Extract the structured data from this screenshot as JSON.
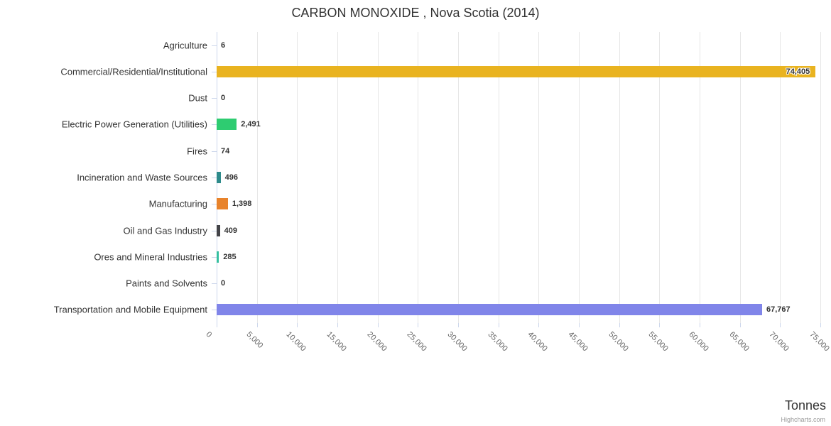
{
  "credits": "Highcharts.com",
  "chart_data": {
    "type": "bar",
    "orientation": "horizontal",
    "title": "CARBON MONOXIDE , Nova Scotia (2014)",
    "xlabel": "Tonnes",
    "categories": [
      "Agriculture",
      "Commercial/Residential/Institutional",
      "Dust",
      "Electric Power Generation (Utilities)",
      "Fires",
      "Incineration and Waste Sources",
      "Manufacturing",
      "Oil and Gas Industry",
      "Ores and Mineral Industries",
      "Paints and Solvents",
      "Transportation and Mobile Equipment"
    ],
    "values": [
      6,
      74405,
      0,
      2491,
      74,
      496,
      1398,
      409,
      285,
      0,
      67767
    ],
    "value_labels": [
      "6",
      "74,405",
      "0",
      "2,491",
      "74",
      "496",
      "1,398",
      "409",
      "285",
      "0",
      "67,767"
    ],
    "bar_colors": [
      null,
      "#E9B320",
      null,
      "#2ECC71",
      null,
      "#2E8B8B",
      "#E8832B",
      "#434348",
      "#36BFA0",
      null,
      "#8085E9"
    ],
    "axis": {
      "min": 0,
      "max": 75000,
      "tick_interval": 5000,
      "tick_labels": [
        "0",
        "5,000",
        "10,000",
        "15,000",
        "20,000",
        "25,000",
        "30,000",
        "35,000",
        "40,000",
        "45,000",
        "50,000",
        "55,000",
        "60,000",
        "65,000",
        "70,000",
        "75,000"
      ]
    },
    "grid": true,
    "legend": false,
    "colors_misc": {
      "grid": "#e6e6e6",
      "axis_line": "#ccd6eb",
      "title_text": "#333333",
      "category_text": "#333333",
      "value_text": "#333333",
      "tick_text": "#666666",
      "credits_text": "#999999"
    }
  }
}
